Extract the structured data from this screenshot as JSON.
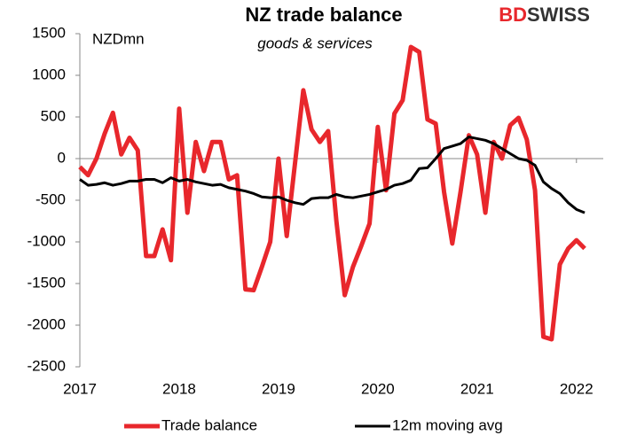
{
  "chart_data": {
    "type": "line",
    "title": "NZ trade balance",
    "subtitle": "goods & services",
    "y_label": "NZDmn",
    "logo": [
      "BD",
      "SWISS"
    ],
    "logo_colors": [
      "#e8272c",
      "#333333"
    ],
    "x": [
      2017,
      2017.083,
      2017.167,
      2017.25,
      2017.333,
      2017.417,
      2017.5,
      2017.583,
      2017.667,
      2017.75,
      2017.833,
      2017.917,
      2018,
      2018.083,
      2018.167,
      2018.25,
      2018.333,
      2018.417,
      2018.5,
      2018.583,
      2018.667,
      2018.75,
      2018.833,
      2018.917,
      2019,
      2019.083,
      2019.167,
      2019.25,
      2019.333,
      2019.417,
      2019.5,
      2019.583,
      2019.667,
      2019.75,
      2019.833,
      2019.917,
      2020,
      2020.083,
      2020.167,
      2020.25,
      2020.333,
      2020.417,
      2020.5,
      2020.583,
      2020.667,
      2020.75,
      2020.833,
      2020.917,
      2021,
      2021.083,
      2021.167,
      2021.25,
      2021.333,
      2021.417,
      2021.5,
      2021.583,
      2021.667,
      2021.75,
      2021.833,
      2021.917,
      2022,
      2022.083
    ],
    "series": [
      {
        "name": "Trade balance",
        "color": "#e8272c",
        "width": 5,
        "values": [
          -100,
          -200,
          0,
          300,
          550,
          50,
          250,
          100,
          -1170,
          -1170,
          -850,
          -1220,
          600,
          -650,
          200,
          -150,
          200,
          200,
          -250,
          -200,
          -1570,
          -1580,
          -1300,
          -1000,
          0,
          -930,
          -50,
          820,
          350,
          200,
          330,
          -750,
          -1640,
          -1300,
          -1050,
          -780,
          380,
          -380,
          540,
          700,
          1340,
          1280,
          470,
          420,
          -400,
          -1020,
          -400,
          280,
          50,
          -650,
          200,
          0,
          400,
          490,
          230,
          -380,
          -2140,
          -2170,
          -1270,
          -1080,
          -980,
          -1080
        ]
      },
      {
        "name": "12m moving avg",
        "color": "#000000",
        "width": 3,
        "values": [
          -250,
          -320,
          -310,
          -290,
          -320,
          -300,
          -270,
          -270,
          -250,
          -250,
          -290,
          -230,
          -270,
          -250,
          -280,
          -300,
          -320,
          -310,
          -350,
          -370,
          -390,
          -420,
          -460,
          -470,
          -460,
          -500,
          -530,
          -550,
          -480,
          -470,
          -470,
          -430,
          -460,
          -470,
          -450,
          -430,
          -400,
          -370,
          -320,
          -300,
          -260,
          -120,
          -110,
          0,
          120,
          150,
          180,
          260,
          240,
          220,
          180,
          120,
          60,
          0,
          -20,
          -80,
          -280,
          -360,
          -420,
          -530,
          -610,
          -650
        ]
      }
    ],
    "xlim": [
      2017,
      2022.27
    ],
    "xticks": [
      2017,
      2018,
      2019,
      2020,
      2021,
      2022
    ],
    "ylim": [
      -2500,
      1500
    ],
    "yticks": [
      1500,
      1000,
      500,
      0,
      -500,
      -1000,
      -1500,
      -2000,
      -2500
    ],
    "legend": "bottom"
  }
}
